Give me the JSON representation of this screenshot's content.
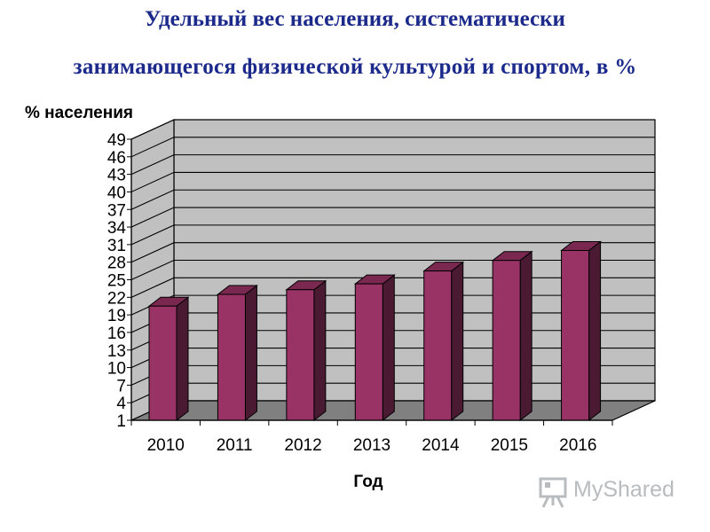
{
  "title_line1": "Удельный вес населения, систематически",
  "title_line2": "занимающегося физической культурой и спортом, в %",
  "watermark": "MyShared",
  "colors": {
    "title": "#1c2a8c",
    "bar_front": "#993366",
    "bar_side": "#4a1a33",
    "bar_top": "#7a2850",
    "wall": "#c0c0c0",
    "floor": "#808080"
  },
  "chart_data": {
    "type": "bar",
    "title": "Удельный вес населения, систематически занимающегося физической культурой и спортом, в %",
    "ylabel": "% населения",
    "xlabel": "Год",
    "categories": [
      "2010",
      "2011",
      "2012",
      "2013",
      "2014",
      "2015",
      "2016"
    ],
    "values": [
      20.5,
      22.5,
      23.3,
      24.3,
      26.5,
      28.3,
      30.0
    ],
    "ylim": [
      1,
      49
    ],
    "yticks": [
      1,
      4,
      7,
      10,
      13,
      16,
      19,
      22,
      25,
      28,
      31,
      34,
      37,
      40,
      43,
      46,
      49
    ],
    "grid": true,
    "legend": "none",
    "style": "3d-column"
  }
}
